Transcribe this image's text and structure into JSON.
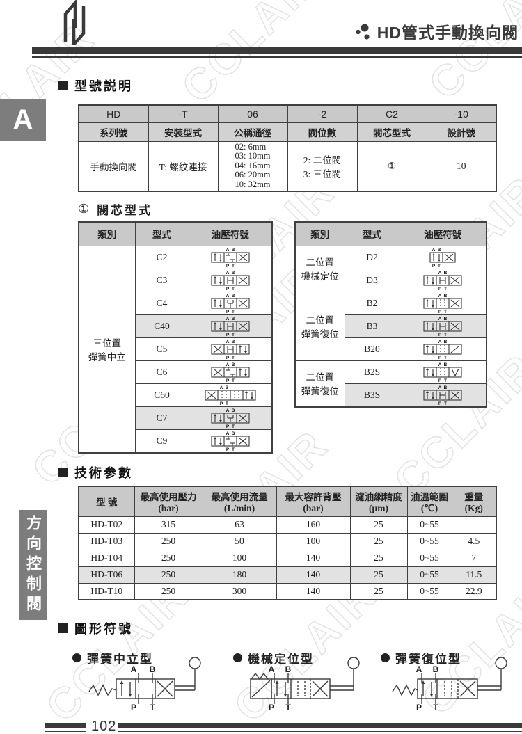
{
  "header": {
    "title": "HD管式手動換向閥"
  },
  "tab": {
    "label": "A"
  },
  "side_tab": {
    "label": "方向控制閥"
  },
  "watermark": {
    "text": "CCLAIR"
  },
  "sections": {
    "model_heading": "型號説明",
    "spool_ref": "①",
    "spool_heading": "閥芯型式",
    "tech_heading": "技術参數",
    "symbols_heading": "圖形符號"
  },
  "model_table": {
    "codes": [
      "HD",
      "-T",
      "06",
      "-2",
      "C2",
      "-10"
    ],
    "labels": [
      "系列號",
      "安裝型式",
      "公稱通徑",
      "閥位數",
      "閥芯型式",
      "設計號"
    ],
    "values": [
      "手動換向閥",
      "T: 螺紋連接",
      "02: 6mm\n03: 10mm\n04: 16mm\n06: 20mm\n10: 32mm",
      "2: 二位閥\n3: 三位閥",
      "①",
      "10"
    ]
  },
  "spool_left": {
    "headers": [
      "類別",
      "型式",
      "油壓符號"
    ],
    "category": "三位置\n彈簧中立",
    "models": [
      "C2",
      "C3",
      "C4",
      "C40",
      "C5",
      "C6",
      "C60",
      "C7",
      "C9"
    ]
  },
  "spool_right": {
    "headers": [
      "類別",
      "型式",
      "油壓符號"
    ],
    "groups": [
      {
        "category": "二位置\n機械定位",
        "models": [
          "D2",
          "D3"
        ]
      },
      {
        "category": "二位置\n彈簧復位",
        "models": [
          "B2",
          "B3",
          "B20"
        ]
      },
      {
        "category": "二位置\n彈簧復位",
        "models": [
          "B2S",
          "B3S"
        ]
      }
    ]
  },
  "tech_table": {
    "headers": [
      "型 號",
      "最高使用壓力\n(bar)",
      "最高使用流量\n(L/min)",
      "最大容許背壓\n(bar)",
      "濾油網精度\n(μm)",
      "油溫範圍\n(℃)",
      "重量\n(Kg)"
    ],
    "rows": [
      [
        "HD-T02",
        "315",
        "63",
        "160",
        "25",
        "0~55",
        ""
      ],
      [
        "HD-T03",
        "250",
        "50",
        "100",
        "25",
        "0~55",
        "4.5"
      ],
      [
        "HD-T04",
        "250",
        "100",
        "140",
        "25",
        "0~55",
        "7"
      ],
      [
        "HD-T06",
        "250",
        "180",
        "140",
        "25",
        "0~55",
        "11.5"
      ],
      [
        "HD-T10",
        "250",
        "300",
        "140",
        "25",
        "0~55",
        "22.9"
      ]
    ]
  },
  "symbol_labels": [
    "彈簧中立型",
    "機械定位型",
    "彈簧復位型"
  ],
  "ports": {
    "a": "A",
    "b": "B",
    "p": "P",
    "t": "T"
  },
  "footer": {
    "page": "102"
  }
}
